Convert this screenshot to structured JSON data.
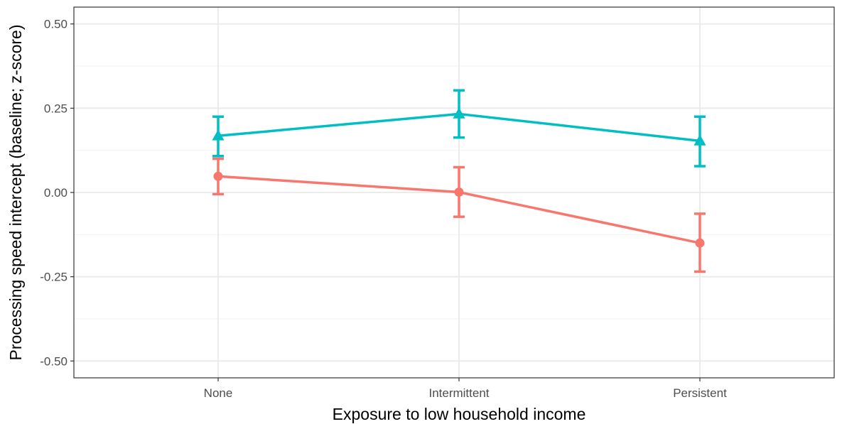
{
  "chart_data": {
    "type": "line",
    "title": "",
    "xlabel": "Exposure to low household income",
    "ylabel": "Processing speed intercept (baseline; z-score)",
    "categories": [
      "None",
      "Intermittent",
      "Persistent"
    ],
    "ylim": [
      -0.55,
      0.55
    ],
    "yticks": [
      -0.5,
      -0.25,
      0.0,
      0.25,
      0.5
    ],
    "ytick_labels": [
      "-0.50",
      "-0.25",
      "0.00",
      "0.25",
      "0.50"
    ],
    "grid": true,
    "legend": "none",
    "series": [
      {
        "marker": "triangle",
        "color": "#00BFC4",
        "values": [
          0.168,
          0.233,
          0.153
        ],
        "lower": [
          0.108,
          0.163,
          0.078
        ],
        "upper": [
          0.225,
          0.303,
          0.225
        ]
      },
      {
        "marker": "circle",
        "color": "#F8766D",
        "values": [
          0.048,
          0.001,
          -0.15
        ],
        "lower": [
          -0.005,
          -0.072,
          -0.235
        ],
        "upper": [
          0.1,
          0.075,
          -0.063
        ]
      }
    ]
  }
}
